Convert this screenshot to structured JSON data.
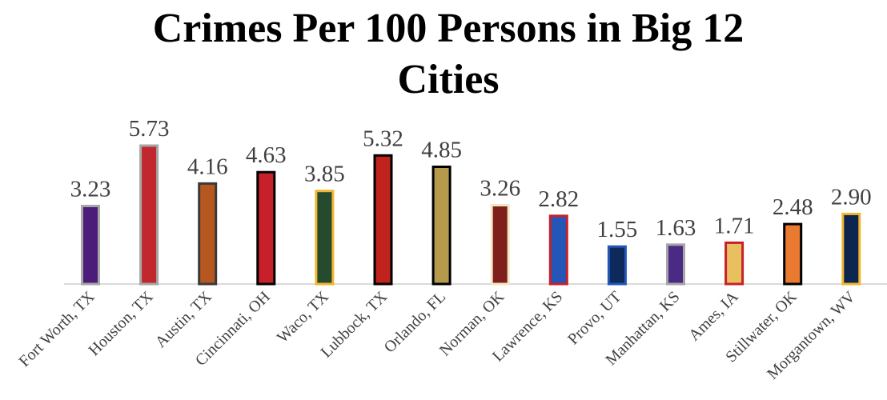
{
  "chart_data": {
    "type": "bar",
    "title_lines": [
      "Crimes Per 100 Persons in Big 12",
      "Cities"
    ],
    "xlabel": "",
    "ylabel": "",
    "categories": [
      "Fort Worth, TX",
      "Houston, TX",
      "Austin, TX",
      "Cincinnati, OH",
      "Waco, TX",
      "Lubbock, TX",
      "Orlando, FL",
      "Norman, OK",
      "Lawrence, KS",
      "Provo, UT",
      "Manhattan, KS",
      "Ames, IA",
      "Stillwater, OK",
      "Morgantown, WV"
    ],
    "values": [
      3.23,
      5.73,
      4.16,
      4.63,
      3.85,
      5.32,
      4.85,
      3.26,
      2.82,
      1.55,
      1.63,
      1.71,
      2.48,
      2.9
    ],
    "value_labels": [
      "3.23",
      "5.73",
      "4.16",
      "4.63",
      "3.85",
      "5.32",
      "4.85",
      "3.26",
      "2.82",
      "1.55",
      "1.63",
      "1.71",
      "2.48",
      "2.90"
    ],
    "bar_fill_colors": [
      "#4B1C7A",
      "#C0282E",
      "#B5571F",
      "#C8202A",
      "#264A2E",
      "#C0221E",
      "#B49A4A",
      "#7F1F1C",
      "#2456B8",
      "#0E2A5A",
      "#4B2A85",
      "#E8C060",
      "#E97A30",
      "#0D2650"
    ],
    "bar_border_colors": [
      "#A6A6A6",
      "#A6A6A6",
      "#3A3A3A",
      "#000000",
      "#F2B630",
      "#000000",
      "#000000",
      "#F2E6C0",
      "#C8202A",
      "#2456B8",
      "#A6A6A6",
      "#C8202A",
      "#000000",
      "#F2B630"
    ],
    "ylim": [
      0,
      6
    ],
    "grid": false,
    "legend": "none",
    "axis_color": "#D9D9D9"
  }
}
